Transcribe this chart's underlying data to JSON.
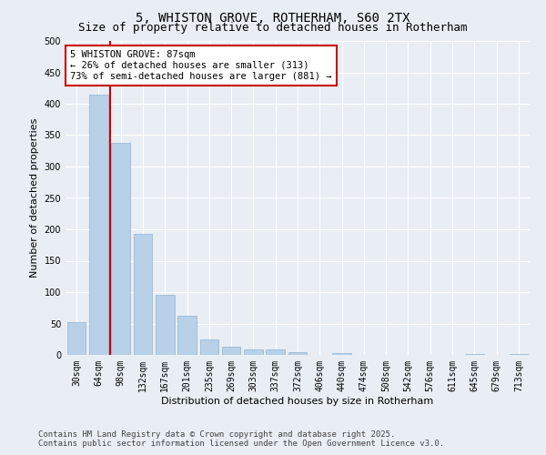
{
  "title_line1": "5, WHISTON GROVE, ROTHERHAM, S60 2TX",
  "title_line2": "Size of property relative to detached houses in Rotherham",
  "xlabel": "Distribution of detached houses by size in Rotherham",
  "ylabel": "Number of detached properties",
  "categories": [
    "30sqm",
    "64sqm",
    "98sqm",
    "132sqm",
    "167sqm",
    "201sqm",
    "235sqm",
    "269sqm",
    "303sqm",
    "337sqm",
    "372sqm",
    "406sqm",
    "440sqm",
    "474sqm",
    "508sqm",
    "542sqm",
    "576sqm",
    "611sqm",
    "645sqm",
    "679sqm",
    "713sqm"
  ],
  "values": [
    52,
    415,
    337,
    193,
    96,
    62,
    24,
    13,
    9,
    8,
    4,
    0,
    3,
    0,
    0,
    0,
    0,
    0,
    2,
    0,
    1
  ],
  "bar_color": "#b8d0e8",
  "bar_edge_color": "#90b4d4",
  "vline_color": "#cc0000",
  "vline_x_index": 1.5,
  "annotation_text": "5 WHISTON GROVE: 87sqm\n← 26% of detached houses are smaller (313)\n73% of semi-detached houses are larger (881) →",
  "annotation_box_facecolor": "#ffffff",
  "annotation_box_edgecolor": "#cc0000",
  "annotation_fontsize": 7.5,
  "ylim": [
    0,
    500
  ],
  "yticks": [
    0,
    50,
    100,
    150,
    200,
    250,
    300,
    350,
    400,
    450,
    500
  ],
  "background_color": "#e8eef4",
  "grid_color": "#ffffff",
  "footer_line1": "Contains HM Land Registry data © Crown copyright and database right 2025.",
  "footer_line2": "Contains public sector information licensed under the Open Government Licence v3.0.",
  "title_fontsize": 10,
  "subtitle_fontsize": 9,
  "axis_label_fontsize": 8,
  "tick_fontsize": 7,
  "footer_fontsize": 6.5
}
